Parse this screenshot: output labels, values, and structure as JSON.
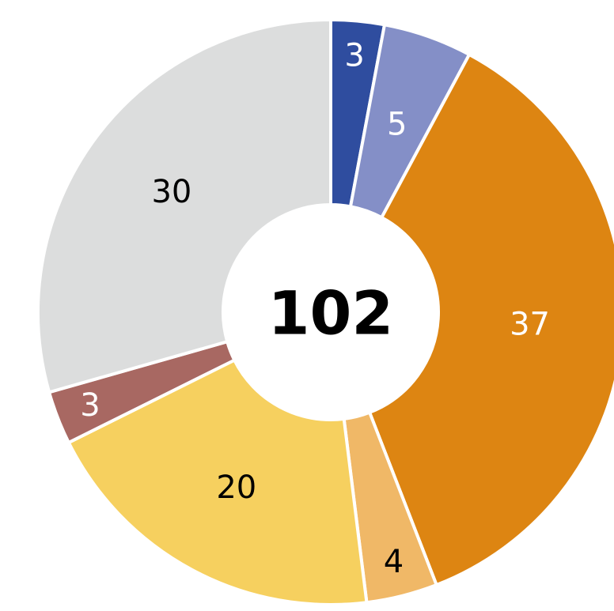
{
  "chart_data": {
    "type": "donut",
    "values": [
      3,
      5,
      37,
      4,
      20,
      3,
      30
    ],
    "colors": [
      "#2f4d9f",
      "#848fc7",
      "#dd8512",
      "#f0b867",
      "#f6d05f",
      "#a86862",
      "#dcdddd"
    ],
    "label_colors": [
      "#ffffff",
      "#ffffff",
      "#ffffff",
      "#000000",
      "#000000",
      "#ffffff",
      "#000000"
    ],
    "total": 102
  }
}
